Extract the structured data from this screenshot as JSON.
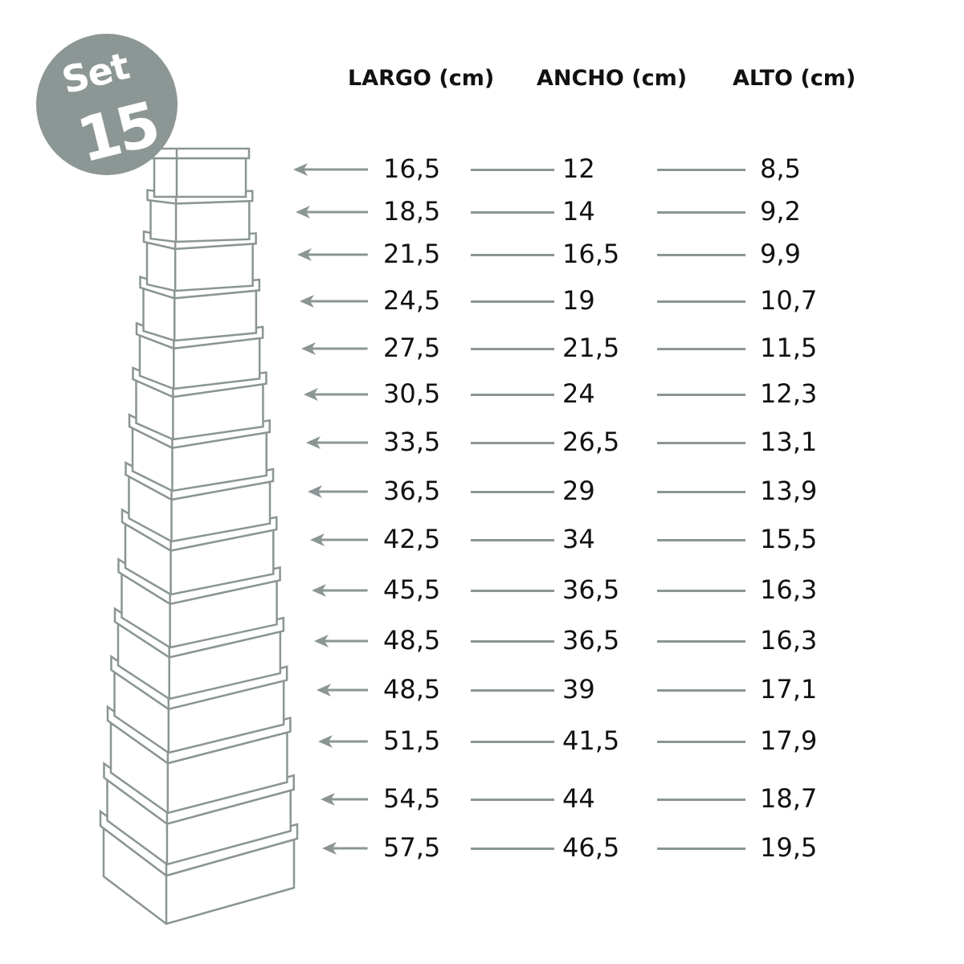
{
  "badge": {
    "label": "Set",
    "count": "15"
  },
  "headers": {
    "largo": "LARGO (cm)",
    "ancho": "ANCHO (cm)",
    "alto": "ALTO (cm)"
  },
  "colors": {
    "accent": "#8c9795",
    "line": "#8a9594",
    "text": "#111111"
  },
  "rows": [
    {
      "largo": "16,5",
      "ancho": "12",
      "alto": "8,5"
    },
    {
      "largo": "18,5",
      "ancho": "14",
      "alto": "9,2"
    },
    {
      "largo": "21,5",
      "ancho": "16,5",
      "alto": "9,9"
    },
    {
      "largo": "24,5",
      "ancho": "19",
      "alto": "10,7"
    },
    {
      "largo": "27,5",
      "ancho": "21,5",
      "alto": "11,5"
    },
    {
      "largo": "30,5",
      "ancho": "24",
      "alto": "12,3"
    },
    {
      "largo": "33,5",
      "ancho": "26,5",
      "alto": "13,1"
    },
    {
      "largo": "36,5",
      "ancho": "29",
      "alto": "13,9"
    },
    {
      "largo": "42,5",
      "ancho": "34",
      "alto": "15,5"
    },
    {
      "largo": "45,5",
      "ancho": "36,5",
      "alto": "16,3"
    },
    {
      "largo": "48,5",
      "ancho": "36,5",
      "alto": "16,3"
    },
    {
      "largo": "48,5",
      "ancho": "39",
      "alto": "17,1"
    },
    {
      "largo": "51,5",
      "ancho": "41,5",
      "alto": "17,9"
    },
    {
      "largo": "54,5",
      "ancho": "44",
      "alto": "18,7"
    },
    {
      "largo": "57,5",
      "ancho": "46,5",
      "alto": "19,5"
    }
  ]
}
